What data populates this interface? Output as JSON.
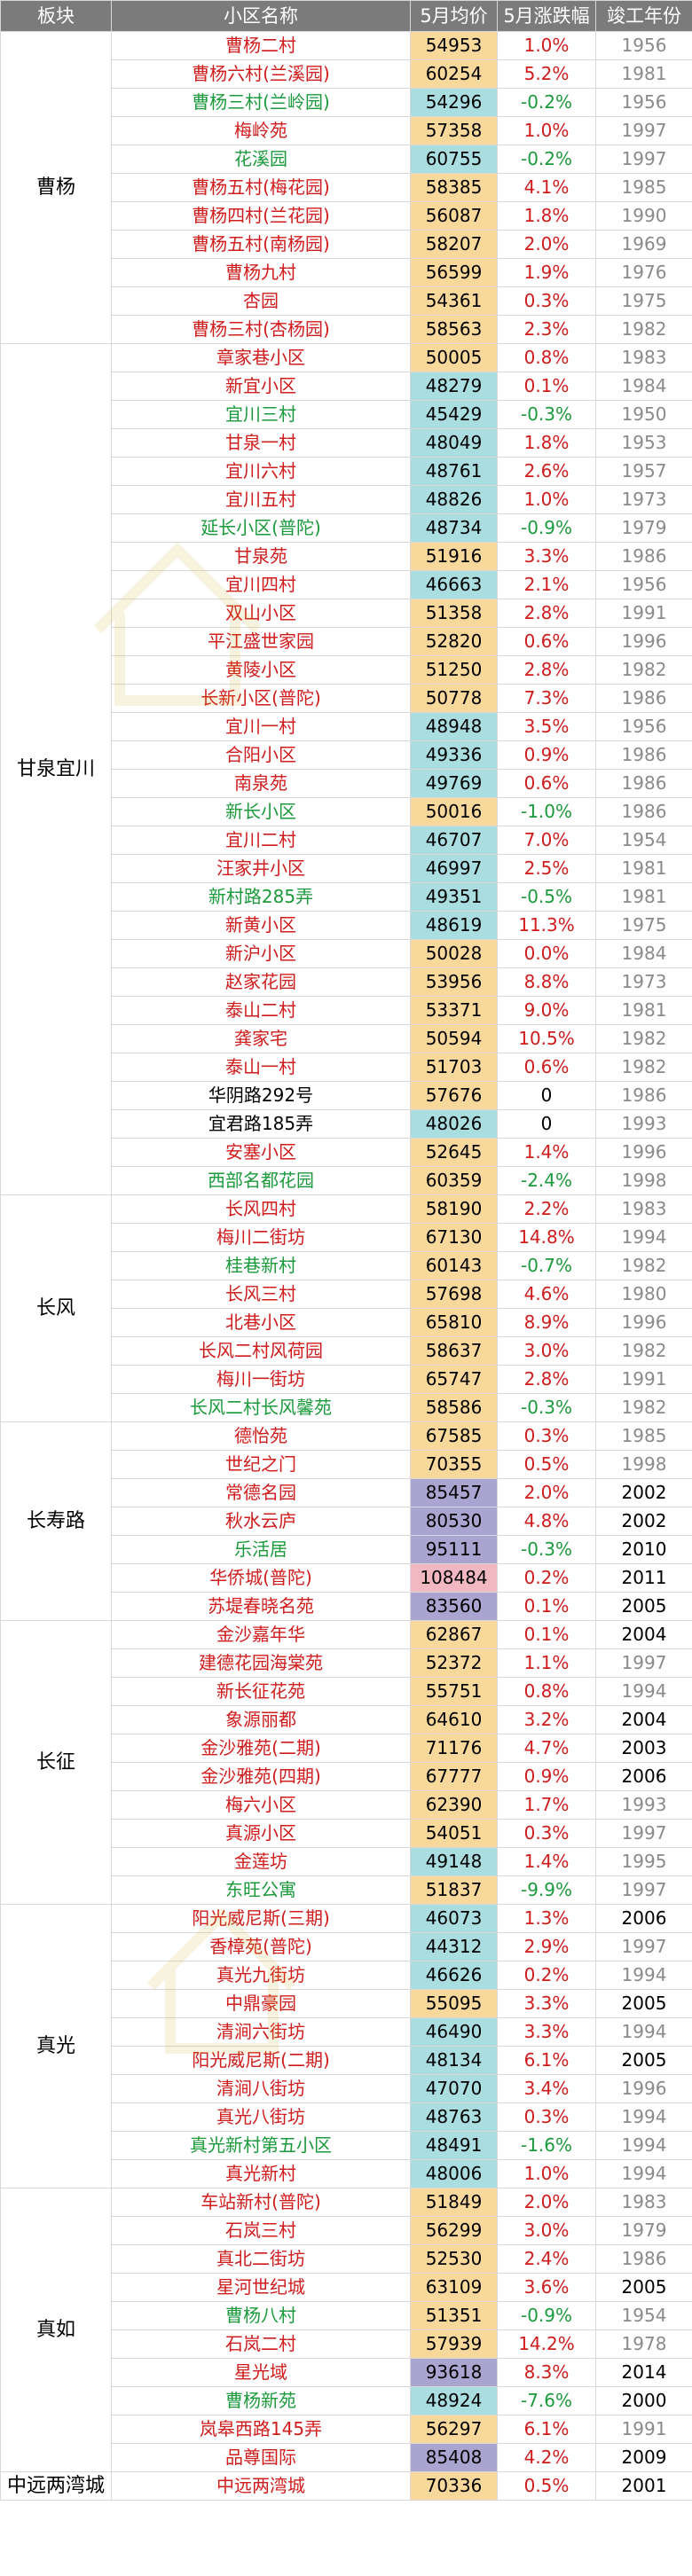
{
  "headers": [
    "板块",
    "小区名称",
    "5月均价",
    "5月涨跌幅",
    "竣工年份"
  ],
  "colors": {
    "red": "#d01c1c",
    "green": "#1b9a3c",
    "gold": "#f9d89b",
    "cyan": "#a9dde0",
    "purple": "#aaa4d0",
    "pink": "#f2b8c2",
    "header": "#7b7b7b"
  },
  "groups": [
    {
      "district": "曹杨",
      "rows": [
        {
          "name": "曹杨二村",
          "price": "54953",
          "change": "1.0%",
          "year": "1956",
          "nc": "red",
          "pc": "gold",
          "cc": "red"
        },
        {
          "name": "曹杨六村(兰溪园)",
          "price": "60254",
          "change": "5.2%",
          "year": "1981",
          "nc": "red",
          "pc": "gold",
          "cc": "red"
        },
        {
          "name": "曹杨三村(兰岭园)",
          "price": "54296",
          "change": "-0.2%",
          "year": "1956",
          "nc": "green",
          "pc": "cyan",
          "cc": "green"
        },
        {
          "name": "梅岭苑",
          "price": "57358",
          "change": "1.0%",
          "year": "1997",
          "nc": "red",
          "pc": "gold",
          "cc": "red"
        },
        {
          "name": "花溪园",
          "price": "60755",
          "change": "-0.2%",
          "year": "1997",
          "nc": "green",
          "pc": "cyan",
          "cc": "green"
        },
        {
          "name": "曹杨五村(梅花园)",
          "price": "58385",
          "change": "4.1%",
          "year": "1985",
          "nc": "red",
          "pc": "gold",
          "cc": "red"
        },
        {
          "name": "曹杨四村(兰花园)",
          "price": "56087",
          "change": "1.8%",
          "year": "1990",
          "nc": "red",
          "pc": "gold",
          "cc": "red"
        },
        {
          "name": "曹杨五村(南杨园)",
          "price": "58207",
          "change": "2.0%",
          "year": "1969",
          "nc": "red",
          "pc": "gold",
          "cc": "red"
        },
        {
          "name": "曹杨九村",
          "price": "56599",
          "change": "1.9%",
          "year": "1976",
          "nc": "red",
          "pc": "gold",
          "cc": "red"
        },
        {
          "name": "杏园",
          "price": "54361",
          "change": "0.3%",
          "year": "1975",
          "nc": "red",
          "pc": "gold",
          "cc": "red"
        },
        {
          "name": "曹杨三村(杏杨园)",
          "price": "58563",
          "change": "2.3%",
          "year": "1982",
          "nc": "red",
          "pc": "gold",
          "cc": "red"
        }
      ]
    },
    {
      "district": "甘泉宜川",
      "rows": [
        {
          "name": "章家巷小区",
          "price": "50005",
          "change": "0.8%",
          "year": "1983",
          "nc": "red",
          "pc": "gold",
          "cc": "red"
        },
        {
          "name": "新宜小区",
          "price": "48279",
          "change": "0.1%",
          "year": "1984",
          "nc": "red",
          "pc": "cyan",
          "cc": "red"
        },
        {
          "name": "宜川三村",
          "price": "45429",
          "change": "-0.3%",
          "year": "1950",
          "nc": "green",
          "pc": "cyan",
          "cc": "green"
        },
        {
          "name": "甘泉一村",
          "price": "48049",
          "change": "1.8%",
          "year": "1953",
          "nc": "red",
          "pc": "cyan",
          "cc": "red"
        },
        {
          "name": "宜川六村",
          "price": "48761",
          "change": "2.6%",
          "year": "1957",
          "nc": "red",
          "pc": "cyan",
          "cc": "red"
        },
        {
          "name": "宜川五村",
          "price": "48826",
          "change": "1.0%",
          "year": "1973",
          "nc": "red",
          "pc": "cyan",
          "cc": "red"
        },
        {
          "name": "延长小区(普陀)",
          "price": "48734",
          "change": "-0.9%",
          "year": "1979",
          "nc": "green",
          "pc": "cyan",
          "cc": "green"
        },
        {
          "name": "甘泉苑",
          "price": "51916",
          "change": "3.3%",
          "year": "1986",
          "nc": "red",
          "pc": "gold",
          "cc": "red"
        },
        {
          "name": "宜川四村",
          "price": "46663",
          "change": "2.1%",
          "year": "1956",
          "nc": "red",
          "pc": "cyan",
          "cc": "red"
        },
        {
          "name": "双山小区",
          "price": "51358",
          "change": "2.8%",
          "year": "1991",
          "nc": "red",
          "pc": "gold",
          "cc": "red"
        },
        {
          "name": "平江盛世家园",
          "price": "52820",
          "change": "0.6%",
          "year": "1996",
          "nc": "red",
          "pc": "gold",
          "cc": "red"
        },
        {
          "name": "黄陵小区",
          "price": "51250",
          "change": "2.8%",
          "year": "1982",
          "nc": "red",
          "pc": "gold",
          "cc": "red"
        },
        {
          "name": "长新小区(普陀)",
          "price": "50778",
          "change": "7.3%",
          "year": "1986",
          "nc": "red",
          "pc": "gold",
          "cc": "red"
        },
        {
          "name": "宜川一村",
          "price": "48948",
          "change": "3.5%",
          "year": "1956",
          "nc": "red",
          "pc": "cyan",
          "cc": "red"
        },
        {
          "name": "合阳小区",
          "price": "49336",
          "change": "0.9%",
          "year": "1986",
          "nc": "red",
          "pc": "cyan",
          "cc": "red"
        },
        {
          "name": "南泉苑",
          "price": "49769",
          "change": "0.6%",
          "year": "1986",
          "nc": "red",
          "pc": "cyan",
          "cc": "red"
        },
        {
          "name": "新长小区",
          "price": "50016",
          "change": "-1.0%",
          "year": "1986",
          "nc": "green",
          "pc": "gold",
          "cc": "green"
        },
        {
          "name": "宜川二村",
          "price": "46707",
          "change": "7.0%",
          "year": "1954",
          "nc": "red",
          "pc": "cyan",
          "cc": "red"
        },
        {
          "name": "汪家井小区",
          "price": "46997",
          "change": "2.5%",
          "year": "1981",
          "nc": "red",
          "pc": "cyan",
          "cc": "red"
        },
        {
          "name": "新村路285弄",
          "price": "49351",
          "change": "-0.5%",
          "year": "1981",
          "nc": "green",
          "pc": "cyan",
          "cc": "green"
        },
        {
          "name": "新黄小区",
          "price": "48619",
          "change": "11.3%",
          "year": "1975",
          "nc": "red",
          "pc": "cyan",
          "cc": "red"
        },
        {
          "name": "新沪小区",
          "price": "50028",
          "change": "0.0%",
          "year": "1984",
          "nc": "red",
          "pc": "gold",
          "cc": "red"
        },
        {
          "name": "赵家花园",
          "price": "53956",
          "change": "8.8%",
          "year": "1973",
          "nc": "red",
          "pc": "gold",
          "cc": "red"
        },
        {
          "name": "泰山二村",
          "price": "53371",
          "change": "9.0%",
          "year": "1981",
          "nc": "red",
          "pc": "gold",
          "cc": "red"
        },
        {
          "name": "龚家宅",
          "price": "50594",
          "change": "10.5%",
          "year": "1982",
          "nc": "red",
          "pc": "gold",
          "cc": "red"
        },
        {
          "name": "泰山一村",
          "price": "51703",
          "change": "0.6%",
          "year": "1982",
          "nc": "red",
          "pc": "gold",
          "cc": "red"
        },
        {
          "name": "华阴路292号",
          "price": "57676",
          "change": "0",
          "year": "1986",
          "nc": "black",
          "pc": "gold",
          "cc": "black"
        },
        {
          "name": "宜君路185弄",
          "price": "48026",
          "change": "0",
          "year": "1993",
          "nc": "black",
          "pc": "cyan",
          "cc": "black"
        },
        {
          "name": "安塞小区",
          "price": "52645",
          "change": "1.4%",
          "year": "1996",
          "nc": "red",
          "pc": "gold",
          "cc": "red"
        },
        {
          "name": "西部名都花园",
          "price": "60359",
          "change": "-2.4%",
          "year": "1998",
          "nc": "green",
          "pc": "gold",
          "cc": "green"
        }
      ]
    },
    {
      "district": "长风",
      "rows": [
        {
          "name": "长风四村",
          "price": "58190",
          "change": "2.2%",
          "year": "1983",
          "nc": "red",
          "pc": "gold",
          "cc": "red"
        },
        {
          "name": "梅川二街坊",
          "price": "67130",
          "change": "14.8%",
          "year": "1994",
          "nc": "red",
          "pc": "gold",
          "cc": "red"
        },
        {
          "name": "桂巷新村",
          "price": "60143",
          "change": "-0.7%",
          "year": "1982",
          "nc": "green",
          "pc": "gold",
          "cc": "green"
        },
        {
          "name": "长风三村",
          "price": "57698",
          "change": "4.6%",
          "year": "1980",
          "nc": "red",
          "pc": "gold",
          "cc": "red"
        },
        {
          "name": "北巷小区",
          "price": "65810",
          "change": "8.9%",
          "year": "1996",
          "nc": "red",
          "pc": "gold",
          "cc": "red"
        },
        {
          "name": "长风二村风荷园",
          "price": "58637",
          "change": "3.0%",
          "year": "1982",
          "nc": "red",
          "pc": "gold",
          "cc": "red"
        },
        {
          "name": "梅川一街坊",
          "price": "65747",
          "change": "2.8%",
          "year": "1991",
          "nc": "red",
          "pc": "gold",
          "cc": "red"
        },
        {
          "name": "长风二村长风馨苑",
          "price": "58586",
          "change": "-0.3%",
          "year": "1982",
          "nc": "green",
          "pc": "gold",
          "cc": "green"
        }
      ]
    },
    {
      "district": "长寿路",
      "rows": [
        {
          "name": "德怡苑",
          "price": "67585",
          "change": "0.3%",
          "year": "1985",
          "nc": "red",
          "pc": "gold",
          "cc": "red"
        },
        {
          "name": "世纪之门",
          "price": "70355",
          "change": "0.5%",
          "year": "1998",
          "nc": "red",
          "pc": "gold",
          "cc": "red"
        },
        {
          "name": "常德名园",
          "price": "85457",
          "change": "2.0%",
          "year": "2002",
          "nc": "red",
          "pc": "purple",
          "cc": "red",
          "yd": true
        },
        {
          "name": "秋水云庐",
          "price": "80530",
          "change": "4.8%",
          "year": "2002",
          "nc": "red",
          "pc": "purple",
          "cc": "red",
          "yd": true
        },
        {
          "name": "乐活居",
          "price": "95111",
          "change": "-0.3%",
          "year": "2010",
          "nc": "green",
          "pc": "purple",
          "cc": "green",
          "yd": true
        },
        {
          "name": "华侨城(普陀)",
          "price": "108484",
          "change": "0.2%",
          "year": "2011",
          "nc": "red",
          "pc": "pink",
          "cc": "red",
          "yd": true
        },
        {
          "name": "苏堤春晓名苑",
          "price": "83560",
          "change": "0.1%",
          "year": "2005",
          "nc": "red",
          "pc": "purple",
          "cc": "red",
          "yd": true
        }
      ]
    },
    {
      "district": "长征",
      "rows": [
        {
          "name": "金沙嘉年华",
          "price": "62867",
          "change": "0.1%",
          "year": "2004",
          "nc": "red",
          "pc": "gold",
          "cc": "red",
          "yd": true
        },
        {
          "name": "建德花园海棠苑",
          "price": "52372",
          "change": "1.1%",
          "year": "1997",
          "nc": "red",
          "pc": "gold",
          "cc": "red"
        },
        {
          "name": "新长征花苑",
          "price": "55751",
          "change": "0.8%",
          "year": "1994",
          "nc": "red",
          "pc": "gold",
          "cc": "red"
        },
        {
          "name": "象源丽都",
          "price": "64610",
          "change": "3.2%",
          "year": "2004",
          "nc": "red",
          "pc": "gold",
          "cc": "red",
          "yd": true
        },
        {
          "name": "金沙雅苑(二期)",
          "price": "71176",
          "change": "4.7%",
          "year": "2003",
          "nc": "red",
          "pc": "gold",
          "cc": "red",
          "yd": true
        },
        {
          "name": "金沙雅苑(四期)",
          "price": "67777",
          "change": "0.9%",
          "year": "2006",
          "nc": "red",
          "pc": "gold",
          "cc": "red",
          "yd": true
        },
        {
          "name": "梅六小区",
          "price": "62390",
          "change": "1.7%",
          "year": "1993",
          "nc": "red",
          "pc": "gold",
          "cc": "red"
        },
        {
          "name": "真源小区",
          "price": "54051",
          "change": "0.3%",
          "year": "1997",
          "nc": "red",
          "pc": "gold",
          "cc": "red"
        },
        {
          "name": "金莲坊",
          "price": "49148",
          "change": "1.4%",
          "year": "1995",
          "nc": "red",
          "pc": "cyan",
          "cc": "red"
        },
        {
          "name": "东旺公寓",
          "price": "51837",
          "change": "-9.9%",
          "year": "1997",
          "nc": "green",
          "pc": "gold",
          "cc": "green"
        }
      ]
    },
    {
      "district": "真光",
      "rows": [
        {
          "name": "阳光威尼斯(三期)",
          "price": "46073",
          "change": "1.3%",
          "year": "2006",
          "nc": "red",
          "pc": "cyan",
          "cc": "red",
          "yd": true
        },
        {
          "name": "香樟苑(普陀)",
          "price": "44312",
          "change": "2.9%",
          "year": "1997",
          "nc": "red",
          "pc": "cyan",
          "cc": "red"
        },
        {
          "name": "真光九街坊",
          "price": "46626",
          "change": "0.2%",
          "year": "1994",
          "nc": "red",
          "pc": "cyan",
          "cc": "red"
        },
        {
          "name": "中鼎豪园",
          "price": "55095",
          "change": "3.3%",
          "year": "2005",
          "nc": "red",
          "pc": "gold",
          "cc": "red",
          "yd": true
        },
        {
          "name": "清涧六街坊",
          "price": "46490",
          "change": "3.3%",
          "year": "1994",
          "nc": "red",
          "pc": "cyan",
          "cc": "red"
        },
        {
          "name": "阳光威尼斯(二期)",
          "price": "48134",
          "change": "6.1%",
          "year": "2005",
          "nc": "red",
          "pc": "cyan",
          "cc": "red",
          "yd": true
        },
        {
          "name": "清涧八街坊",
          "price": "47070",
          "change": "3.4%",
          "year": "1996",
          "nc": "red",
          "pc": "cyan",
          "cc": "red"
        },
        {
          "name": "真光八街坊",
          "price": "48763",
          "change": "0.3%",
          "year": "1994",
          "nc": "red",
          "pc": "cyan",
          "cc": "red"
        },
        {
          "name": "真光新村第五小区",
          "price": "48491",
          "change": "-1.6%",
          "year": "1994",
          "nc": "green",
          "pc": "cyan",
          "cc": "green"
        },
        {
          "name": "真光新村",
          "price": "48006",
          "change": "1.0%",
          "year": "1994",
          "nc": "red",
          "pc": "cyan",
          "cc": "red"
        }
      ]
    },
    {
      "district": "真如",
      "rows": [
        {
          "name": "车站新村(普陀)",
          "price": "51849",
          "change": "2.0%",
          "year": "1983",
          "nc": "red",
          "pc": "gold",
          "cc": "red"
        },
        {
          "name": "石岚三村",
          "price": "56299",
          "change": "3.0%",
          "year": "1979",
          "nc": "red",
          "pc": "gold",
          "cc": "red"
        },
        {
          "name": "真北二街坊",
          "price": "52530",
          "change": "2.4%",
          "year": "1986",
          "nc": "red",
          "pc": "gold",
          "cc": "red"
        },
        {
          "name": "星河世纪城",
          "price": "63109",
          "change": "3.6%",
          "year": "2005",
          "nc": "red",
          "pc": "gold",
          "cc": "red",
          "yd": true
        },
        {
          "name": "曹杨八村",
          "price": "51351",
          "change": "-0.9%",
          "year": "1954",
          "nc": "green",
          "pc": "gold",
          "cc": "green"
        },
        {
          "name": "石岚二村",
          "price": "57939",
          "change": "14.2%",
          "year": "1978",
          "nc": "red",
          "pc": "gold",
          "cc": "red"
        },
        {
          "name": "星光域",
          "price": "93618",
          "change": "8.3%",
          "year": "2014",
          "nc": "red",
          "pc": "purple",
          "cc": "red",
          "yd": true
        },
        {
          "name": "曹杨新苑",
          "price": "48924",
          "change": "-7.6%",
          "year": "2000",
          "nc": "green",
          "pc": "cyan",
          "cc": "green",
          "yd": true
        },
        {
          "name": "岚皋西路145弄",
          "price": "56297",
          "change": "6.1%",
          "year": "1991",
          "nc": "red",
          "pc": "gold",
          "cc": "red"
        },
        {
          "name": "品尊国际",
          "price": "85408",
          "change": "4.2%",
          "year": "2009",
          "nc": "red",
          "pc": "purple",
          "cc": "red",
          "yd": true
        }
      ]
    },
    {
      "district": "中远两湾城",
      "rows": [
        {
          "name": "中远两湾城",
          "price": "70336",
          "change": "0.5%",
          "year": "2001",
          "nc": "red",
          "pc": "gold",
          "cc": "red",
          "yd": true
        }
      ]
    }
  ]
}
